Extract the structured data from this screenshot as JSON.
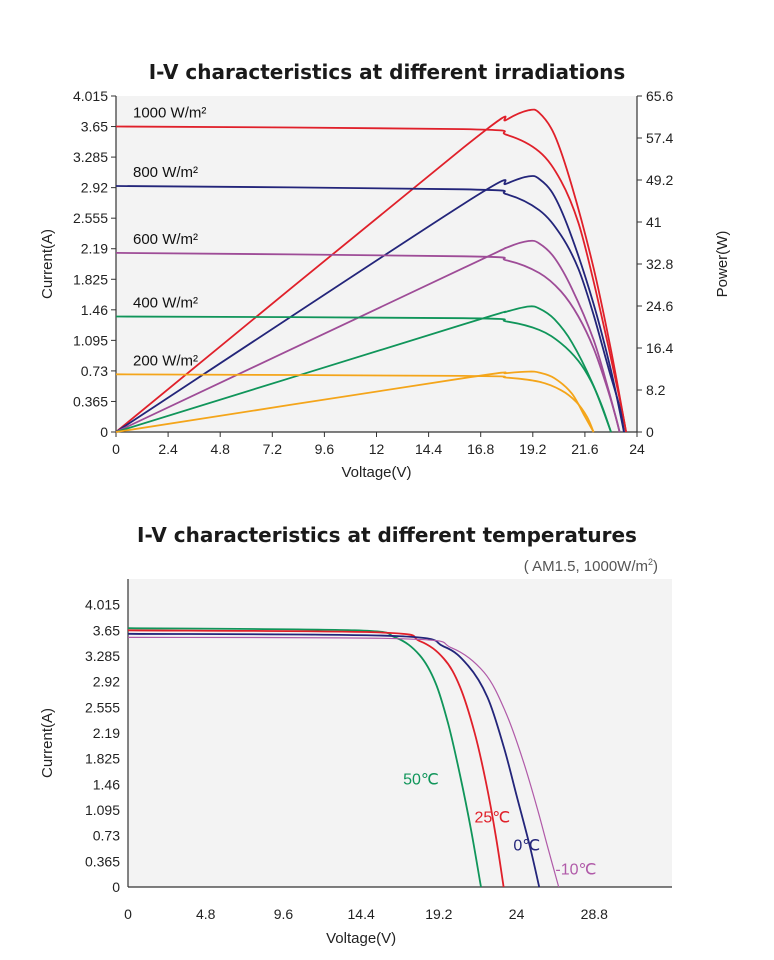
{
  "chart_data": [
    {
      "type": "line",
      "title": "I-V characteristics at different irradiations",
      "xlabel": "Voltage(V)",
      "ylabel": "Current(A)",
      "y2label": "Power(W)",
      "xlim": [
        0,
        24
      ],
      "ylim": [
        0,
        4.015
      ],
      "y2lim": [
        0,
        65.6
      ],
      "x_ticks": [
        "0",
        "2.4",
        "4.8",
        "7.2",
        "9.6",
        "12",
        "14.4",
        "16.8",
        "19.2",
        "21.6",
        "24"
      ],
      "y_ticks": [
        "0",
        "0.365",
        "0.73",
        "1.095",
        "1.46",
        "1.825",
        "2.19",
        "2.555",
        "2.92",
        "3.285",
        "3.65",
        "4.015"
      ],
      "y2_ticks": [
        "0",
        "8.2",
        "16.4",
        "24.6",
        "32.8",
        "41",
        "49.2",
        "57.4",
        "65.6"
      ],
      "grid": false,
      "series": [
        {
          "name": "1000 W/m²",
          "color": "#e0202a",
          "iv": [
            [
              0,
              3.65
            ],
            [
              16,
              3.62
            ],
            [
              18,
              3.55
            ],
            [
              19.5,
              3.35
            ],
            [
              20.5,
              3.0
            ],
            [
              21.3,
              2.5
            ],
            [
              22,
              1.8
            ],
            [
              22.7,
              1.0
            ],
            [
              23.2,
              0.4
            ],
            [
              23.5,
              0
            ]
          ],
          "pv": [
            [
              0,
              0
            ],
            [
              16,
              55.5
            ],
            [
              18,
              61.0
            ],
            [
              19,
              62.8
            ],
            [
              19.5,
              62.3
            ],
            [
              20.2,
              58.0
            ],
            [
              21,
              48.0
            ],
            [
              22,
              32.0
            ],
            [
              22.8,
              16.0
            ],
            [
              23.5,
              0
            ]
          ]
        },
        {
          "name": "800 W/m²",
          "color": "#23257a",
          "iv": [
            [
              0,
              2.94
            ],
            [
              16,
              2.9
            ],
            [
              18,
              2.84
            ],
            [
              19.5,
              2.65
            ],
            [
              20.5,
              2.35
            ],
            [
              21.3,
              1.95
            ],
            [
              22,
              1.4
            ],
            [
              22.7,
              0.75
            ],
            [
              23.2,
              0.3
            ],
            [
              23.4,
              0
            ]
          ],
          "pv": [
            [
              0,
              0
            ],
            [
              16,
              44.5
            ],
            [
              18,
              48.5
            ],
            [
              19,
              49.9
            ],
            [
              19.5,
              49.4
            ],
            [
              20.2,
              46.0
            ],
            [
              21,
              38.0
            ],
            [
              22,
              25.0
            ],
            [
              22.8,
              12.0
            ],
            [
              23.4,
              0
            ]
          ]
        },
        {
          "name": "600 W/m²",
          "color": "#9e4c97",
          "iv": [
            [
              0,
              2.14
            ],
            [
              16,
              2.1
            ],
            [
              18,
              2.05
            ],
            [
              19.5,
              1.9
            ],
            [
              20.5,
              1.68
            ],
            [
              21.3,
              1.38
            ],
            [
              22,
              1.0
            ],
            [
              22.6,
              0.55
            ],
            [
              23.0,
              0.2
            ],
            [
              23.2,
              0
            ]
          ],
          "pv": [
            [
              0,
              0
            ],
            [
              16,
              32.0
            ],
            [
              18,
              36.0
            ],
            [
              19,
              37.3
            ],
            [
              19.5,
              36.8
            ],
            [
              20.2,
              34.0
            ],
            [
              21,
              28.0
            ],
            [
              22,
              18.0
            ],
            [
              22.7,
              8.0
            ],
            [
              23.2,
              0
            ]
          ]
        },
        {
          "name": "400 W/m²",
          "color": "#10955a",
          "iv": [
            [
              0,
              1.38
            ],
            [
              16,
              1.36
            ],
            [
              18,
              1.32
            ],
            [
              19.5,
              1.22
            ],
            [
              20.5,
              1.06
            ],
            [
              21.3,
              0.85
            ],
            [
              21.9,
              0.6
            ],
            [
              22.4,
              0.3
            ],
            [
              22.8,
              0
            ]
          ],
          "pv": [
            [
              0,
              0
            ],
            [
              16,
              21.0
            ],
            [
              18,
              23.5
            ],
            [
              19,
              24.5
            ],
            [
              19.5,
              24.1
            ],
            [
              20.2,
              22.0
            ],
            [
              21,
              17.5
            ],
            [
              22,
              9.0
            ],
            [
              22.8,
              0
            ]
          ]
        },
        {
          "name": "200 W/m²",
          "color": "#f4a51a",
          "iv": [
            [
              0,
              0.69
            ],
            [
              16,
              0.67
            ],
            [
              18,
              0.65
            ],
            [
              19.5,
              0.6
            ],
            [
              20.5,
              0.5
            ],
            [
              21.2,
              0.36
            ],
            [
              21.7,
              0.18
            ],
            [
              22,
              0
            ]
          ],
          "pv": [
            [
              0,
              0
            ],
            [
              16,
              10.5
            ],
            [
              18,
              11.5
            ],
            [
              19,
              11.8
            ],
            [
              19.5,
              11.6
            ],
            [
              20.2,
              10.5
            ],
            [
              21,
              7.5
            ],
            [
              21.6,
              3.0
            ],
            [
              22,
              0
            ]
          ]
        }
      ]
    },
    {
      "type": "line",
      "title": "I-V characteristics at different temperatures",
      "subtitle": "( AM1.5,  1000W/m",
      "subtitle_sup": "2",
      "subtitle_end": ")",
      "xlabel": "Voltage(V)",
      "ylabel": "Current(A)",
      "xlim": [
        0,
        33.6
      ],
      "ylim": [
        0,
        4.38
      ],
      "x_ticks": [
        "0",
        "4.8",
        "9.6",
        "14.4",
        "19.2",
        "24",
        "28.8"
      ],
      "y_ticks": [
        "0",
        "0.365",
        "0.73",
        "1.095",
        "1.46",
        "1.825",
        "2.19",
        "2.555",
        "2.92",
        "3.285",
        "3.65",
        "4.015"
      ],
      "grid": false,
      "series": [
        {
          "name": "50℃",
          "color": "#10955a",
          "iv": [
            [
              0,
              3.68
            ],
            [
              14,
              3.65
            ],
            [
              16.5,
              3.55
            ],
            [
              18,
              3.3
            ],
            [
              19,
              2.9
            ],
            [
              19.8,
              2.3
            ],
            [
              20.5,
              1.6
            ],
            [
              21.2,
              0.8
            ],
            [
              21.8,
              0
            ]
          ]
        },
        {
          "name": "25℃",
          "color": "#e0202a",
          "iv": [
            [
              0,
              3.65
            ],
            [
              15.5,
              3.62
            ],
            [
              18,
              3.5
            ],
            [
              19.5,
              3.25
            ],
            [
              20.5,
              2.85
            ],
            [
              21.4,
              2.2
            ],
            [
              22.1,
              1.5
            ],
            [
              22.7,
              0.75
            ],
            [
              23.2,
              0
            ]
          ]
        },
        {
          "name": "0℃",
          "color": "#23257a",
          "iv": [
            [
              0,
              3.6
            ],
            [
              16.5,
              3.57
            ],
            [
              19.5,
              3.42
            ],
            [
              21,
              3.15
            ],
            [
              22.2,
              2.7
            ],
            [
              23.2,
              2.0
            ],
            [
              24,
              1.3
            ],
            [
              24.8,
              0.6
            ],
            [
              25.4,
              0
            ]
          ]
        },
        {
          "name": "-10℃",
          "color": "#b05aa8",
          "iv": [
            [
              0,
              3.55
            ],
            [
              17,
              3.53
            ],
            [
              20,
              3.4
            ],
            [
              22,
              3.05
            ],
            [
              23.3,
              2.5
            ],
            [
              24.4,
              1.8
            ],
            [
              25.3,
              1.1
            ],
            [
              26,
              0.5
            ],
            [
              26.6,
              0
            ]
          ]
        }
      ]
    }
  ]
}
